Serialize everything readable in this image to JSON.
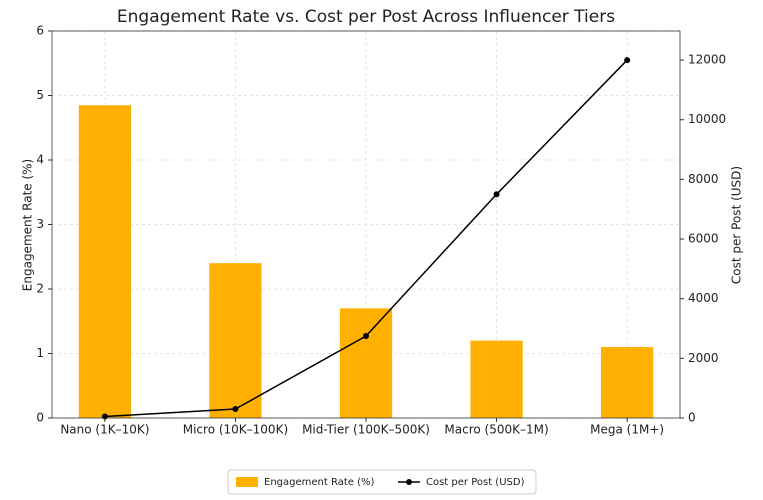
{
  "chart_data": {
    "type": "bar",
    "title": "Engagement Rate vs. Cost per Post Across Influencer Tiers",
    "categories": [
      "Nano (1K–10K)",
      "Micro (10K–100K)",
      "Mid-Tier (100K–500K)",
      "Macro (500K–1M)",
      "Mega (1M+)"
    ],
    "series": [
      {
        "name": "Engagement Rate (%)",
        "type": "bar",
        "color": "#ffb000",
        "values": [
          4.85,
          2.4,
          1.7,
          1.2,
          1.1
        ]
      },
      {
        "name": "Cost per Post (USD)",
        "type": "line",
        "axis": "y2",
        "color": "#000000",
        "values": [
          50,
          300,
          2750,
          7500,
          12000
        ]
      }
    ],
    "ylabel": "Engagement Rate (%)",
    "y2label": "Cost per Post (USD)",
    "ylim": [
      0,
      6
    ],
    "yticks": [
      0,
      1,
      2,
      3,
      4,
      5,
      6
    ],
    "y2lim": [
      0,
      12975
    ],
    "y2ticks": [
      0,
      2000,
      4000,
      6000,
      8000,
      10000,
      12000
    ],
    "grid": true,
    "legend": "bottom"
  }
}
